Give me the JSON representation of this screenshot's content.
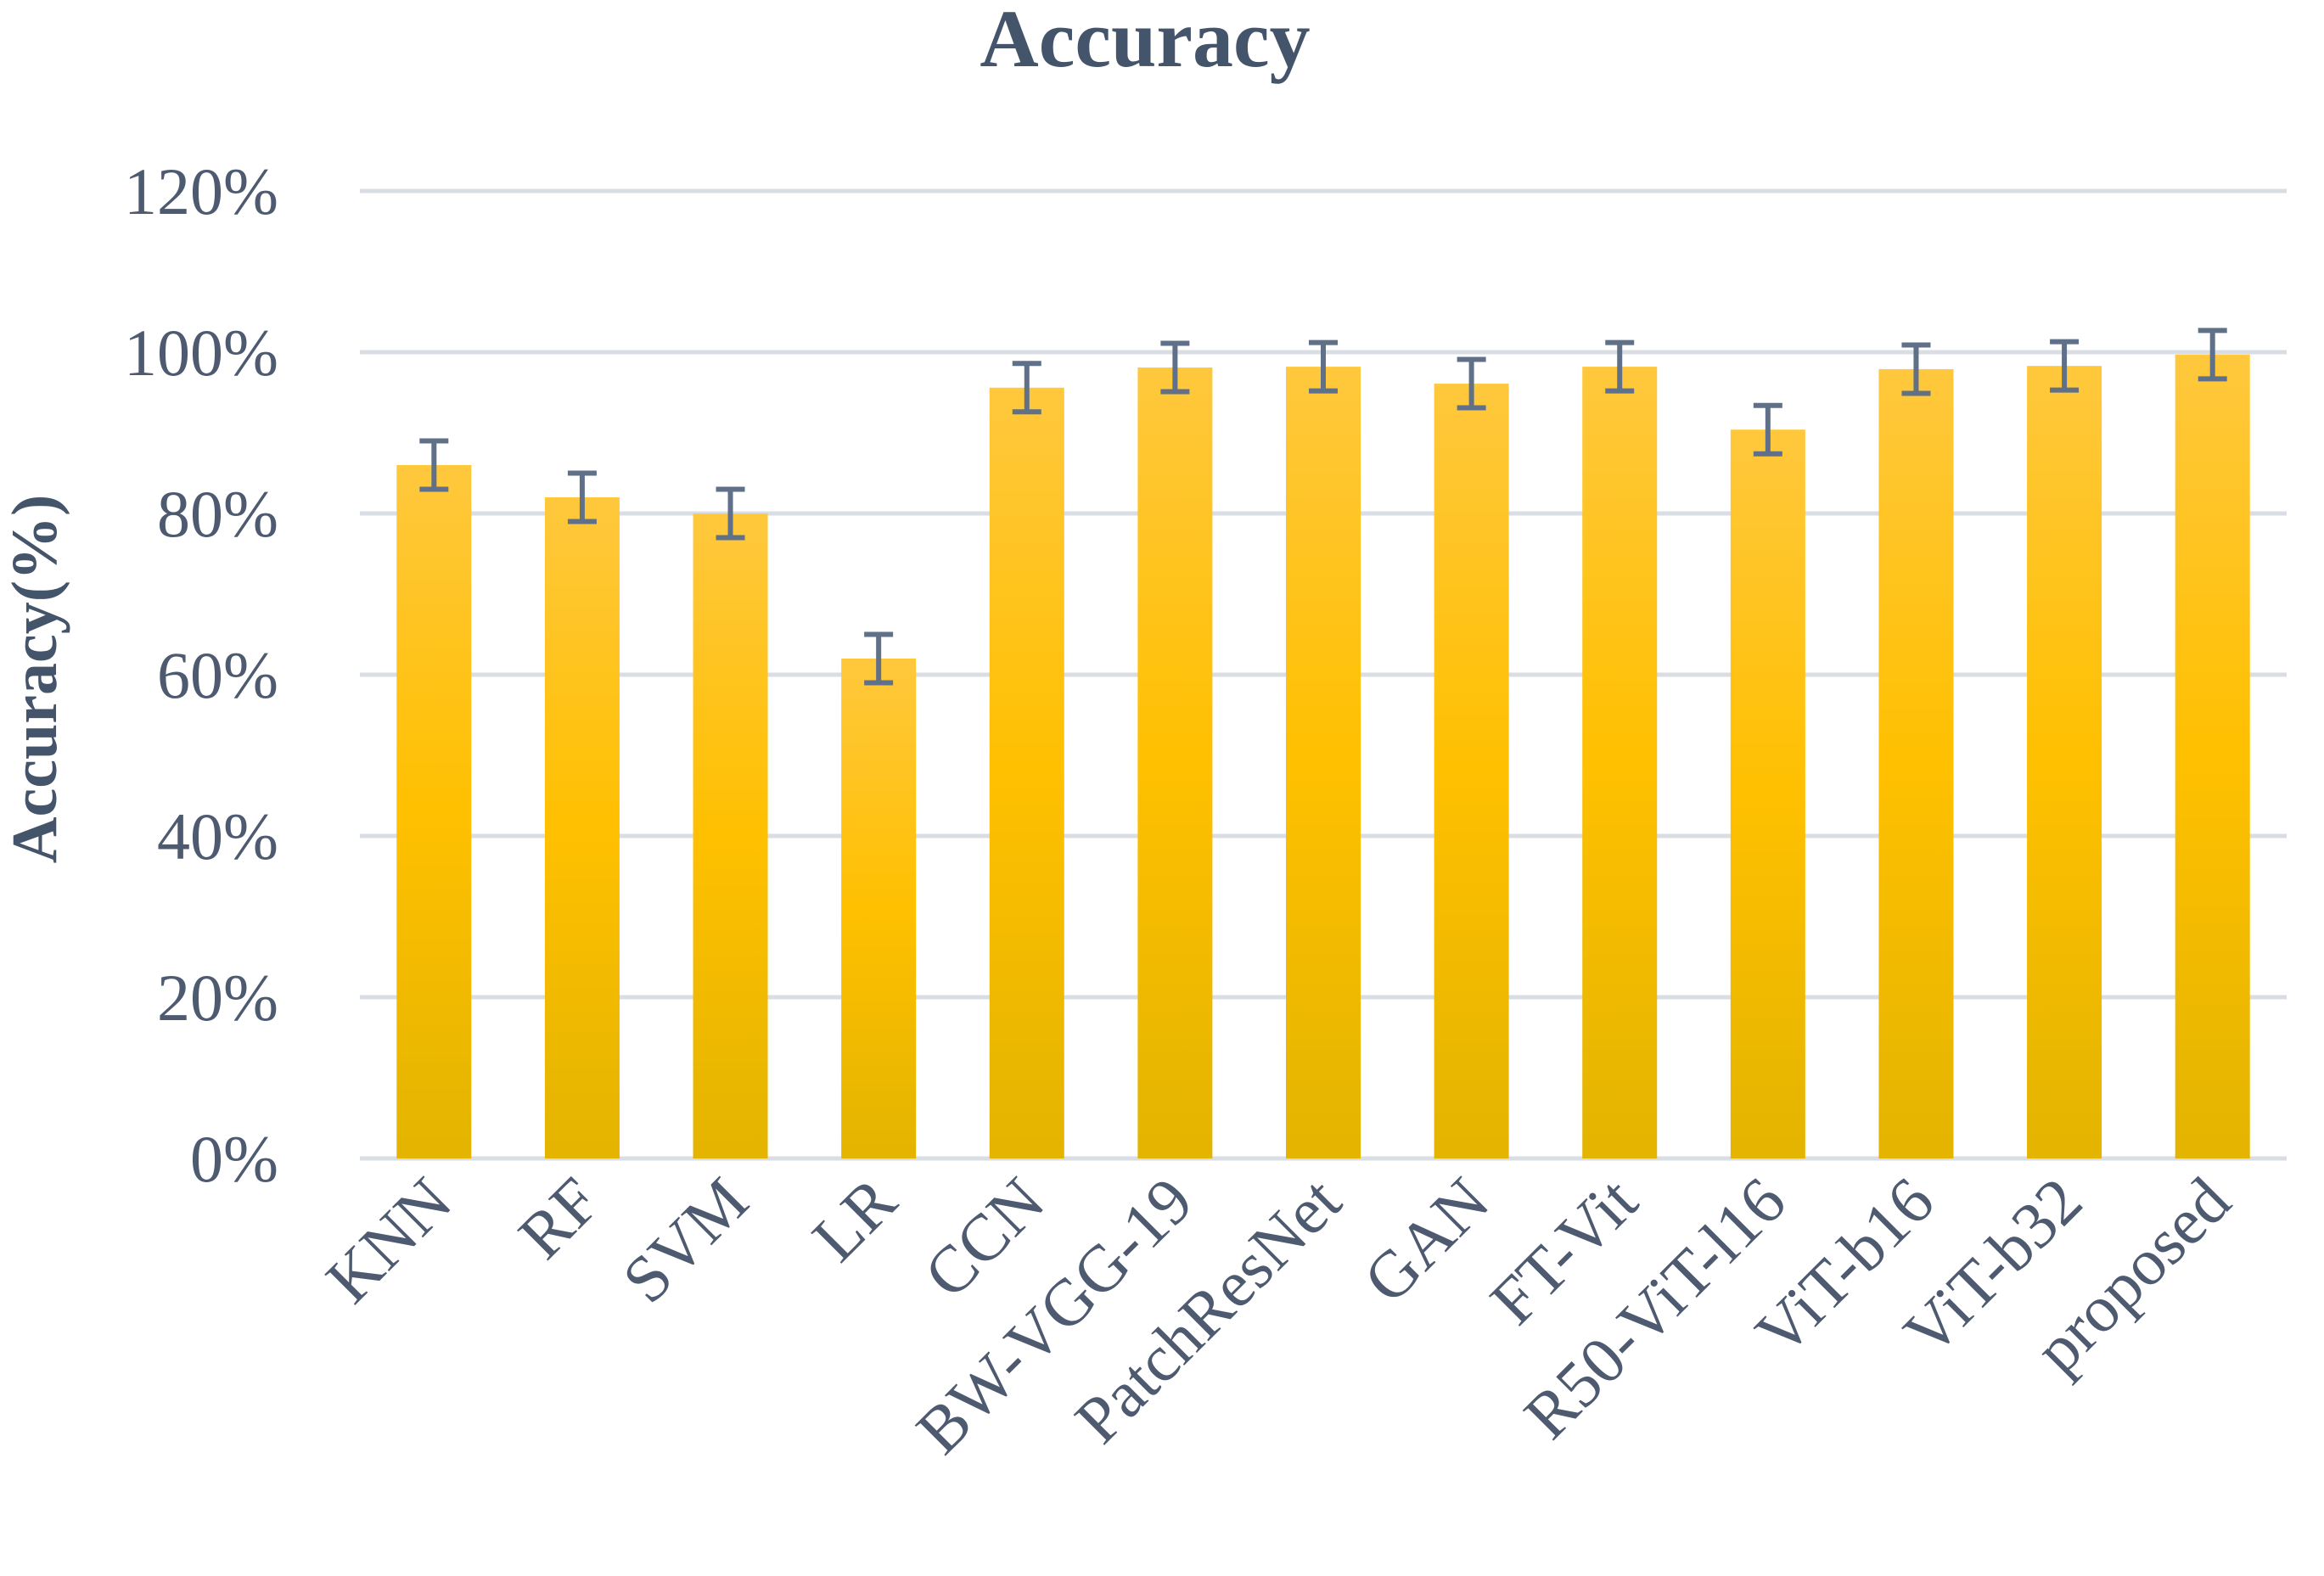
{
  "chart_data": {
    "type": "bar",
    "title": "Accuracy",
    "xlabel": "",
    "ylabel": "Accuracy(%)",
    "ylim": [
      0,
      120
    ],
    "yticks": [
      "0%",
      "20%",
      "40%",
      "60%",
      "80%",
      "100%",
      "120%"
    ],
    "yticks_values": [
      0,
      20,
      40,
      60,
      80,
      100,
      120
    ],
    "grid": true,
    "legend": "none",
    "categories": [
      "KNN",
      "RF",
      "SVM",
      "LR",
      "CCN",
      "BW-VGG-19",
      "PatchResNet",
      "GAN",
      "FT-Vit",
      "R50-ViT-l16",
      "ViT-b16",
      "ViT-b32",
      "proposed"
    ],
    "values": [
      86,
      82,
      80,
      62,
      95.6,
      98.1,
      98.2,
      96.1,
      98.2,
      90.4,
      97.9,
      98.3,
      99.7
    ],
    "error": [
      3,
      3,
      3,
      3,
      3,
      3,
      3,
      3,
      3,
      3,
      3,
      3,
      3
    ],
    "colors": {
      "bar_top": "#ffc83d",
      "bar_mid": "#ffc000",
      "bar_bottom": "#e3b400",
      "error_bar": "#5f7088",
      "text": "#44546a",
      "grid": "#d9dde4"
    }
  }
}
